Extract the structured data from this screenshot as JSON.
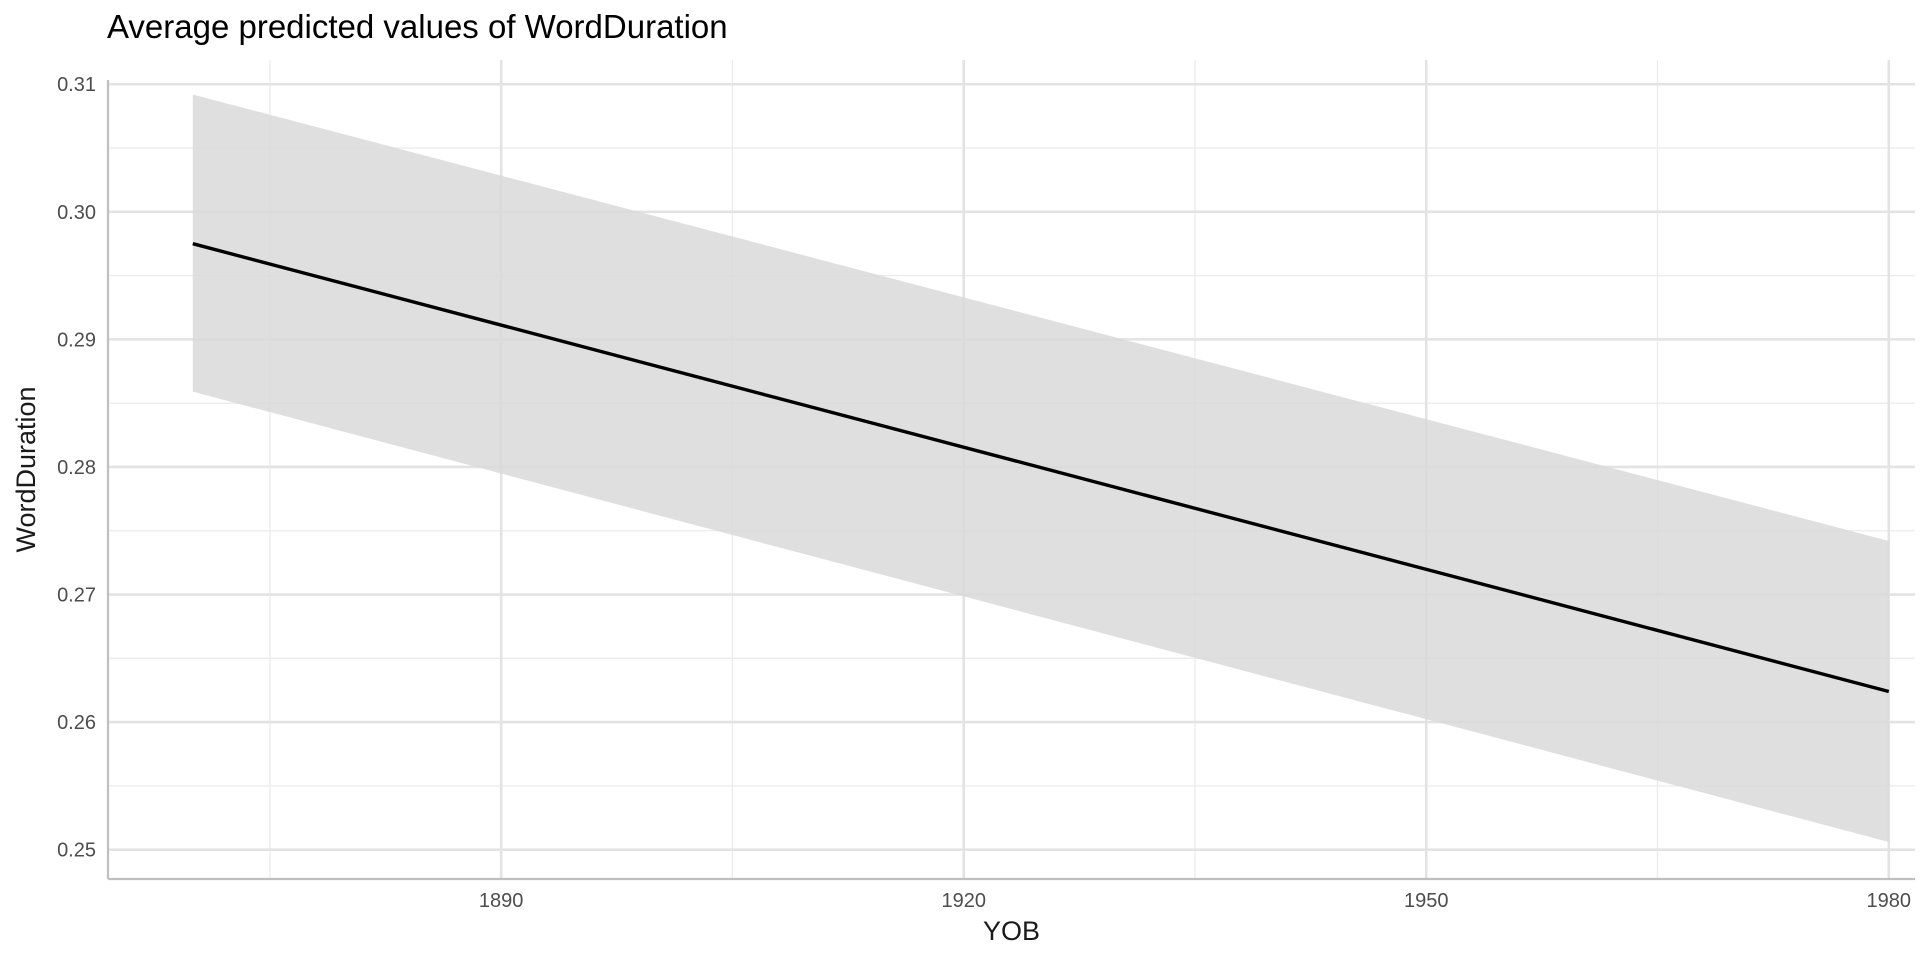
{
  "chart_data": {
    "type": "line",
    "title": "Average predicted values of WordDuration",
    "xlabel": "YOB",
    "ylabel": "WordDuration",
    "xlim": [
      1864.5,
      1981.7
    ],
    "ylim": [
      0.2477,
      0.3119
    ],
    "x_ticks": [
      1890,
      1920,
      1950,
      1980
    ],
    "x_tick_labels": [
      "1890",
      "1920",
      "1950",
      "1980"
    ],
    "x_minor_ticks": [
      1875,
      1905,
      1935,
      1965
    ],
    "y_ticks": [
      0.25,
      0.26,
      0.27,
      0.28,
      0.29,
      0.3,
      0.31
    ],
    "y_tick_labels": [
      "0.25",
      "0.26",
      "0.27",
      "0.28",
      "0.29",
      "0.30",
      "0.31"
    ],
    "y_minor_ticks": [
      0.255,
      0.265,
      0.275,
      0.285,
      0.295,
      0.305
    ],
    "grid": true,
    "series": [
      {
        "x": [
          1870,
          1980
        ],
        "values": [
          0.2975,
          0.2624
        ],
        "ci_low": [
          0.2859,
          0.2506
        ],
        "ci_high": [
          0.3092,
          0.2742
        ],
        "line_color": "#000000",
        "band_color": "#d9d9d9"
      }
    ]
  }
}
